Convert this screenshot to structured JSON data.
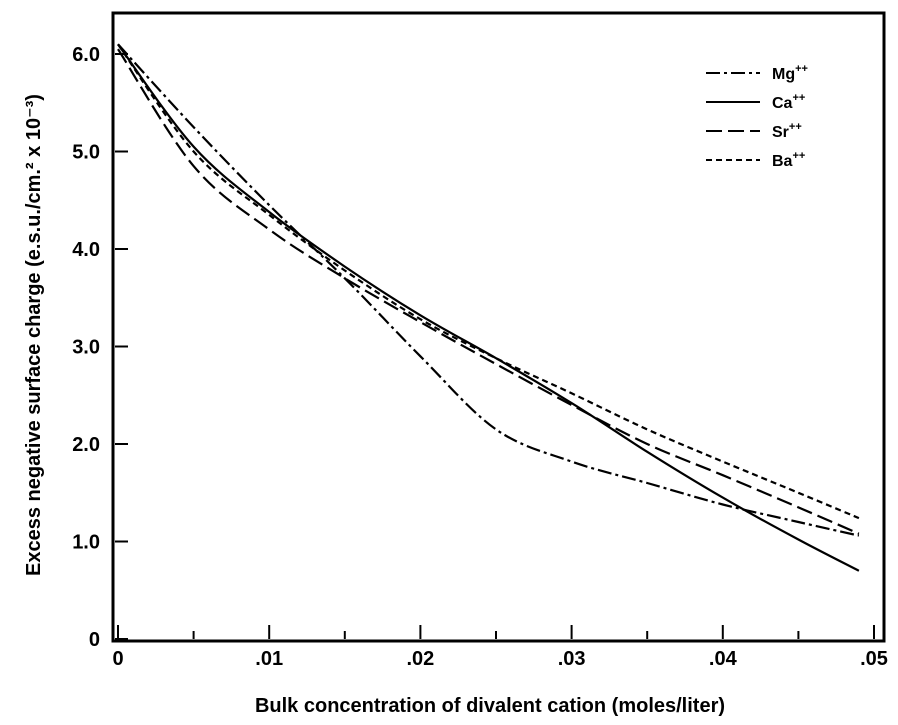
{
  "chart_data": {
    "type": "line",
    "xlabel": "Bulk concentration of divalent cation (moles/liter)",
    "ylabel": "Excess negative surface charge (e.s.u./cm.² x 10⁻³)",
    "xlim": [
      0,
      0.05
    ],
    "ylim": [
      0,
      6.4
    ],
    "x_ticks": [
      0,
      0.01,
      0.02,
      0.03,
      0.04,
      0.05
    ],
    "x_tick_labels": [
      "0",
      ".01",
      ".02",
      ".03",
      ".04",
      ".05"
    ],
    "y_ticks": [
      0,
      1,
      2,
      3,
      4,
      5,
      6
    ],
    "y_tick_labels": [
      "0",
      "1.0",
      "2.0",
      "3.0",
      "4.0",
      "5.0",
      "6.0"
    ],
    "grid": false,
    "legend_position": "top-right",
    "series": [
      {
        "name": "Mg",
        "sup": "++",
        "dash": "dash-dot",
        "x": [
          0,
          0.005,
          0.01,
          0.015,
          0.02,
          0.025,
          0.03,
          0.035,
          0.04,
          0.045,
          0.049
        ],
        "y": [
          6.1,
          5.25,
          4.45,
          3.7,
          2.9,
          2.15,
          1.82,
          1.6,
          1.38,
          1.2,
          1.06
        ]
      },
      {
        "name": "Ca",
        "sup": "++",
        "dash": "solid",
        "x": [
          0,
          0.005,
          0.01,
          0.015,
          0.02,
          0.025,
          0.03,
          0.035,
          0.04,
          0.045,
          0.049
        ],
        "y": [
          6.1,
          5.05,
          4.38,
          3.82,
          3.32,
          2.88,
          2.42,
          1.92,
          1.45,
          1.02,
          0.7
        ]
      },
      {
        "name": "Sr",
        "sup": "++",
        "dash": "long-dash",
        "x": [
          0,
          0.005,
          0.01,
          0.015,
          0.02,
          0.025,
          0.03,
          0.035,
          0.04,
          0.045,
          0.049
        ],
        "y": [
          6.05,
          4.85,
          4.2,
          3.7,
          3.25,
          2.82,
          2.4,
          2.0,
          1.68,
          1.35,
          1.08
        ]
      },
      {
        "name": "Ba",
        "sup": "++",
        "dash": "short-dash",
        "x": [
          0,
          0.005,
          0.01,
          0.015,
          0.02,
          0.025,
          0.03,
          0.035,
          0.04,
          0.045,
          0.049
        ],
        "y": [
          6.1,
          5.0,
          4.35,
          3.78,
          3.28,
          2.88,
          2.52,
          2.15,
          1.82,
          1.5,
          1.24
        ]
      }
    ]
  }
}
